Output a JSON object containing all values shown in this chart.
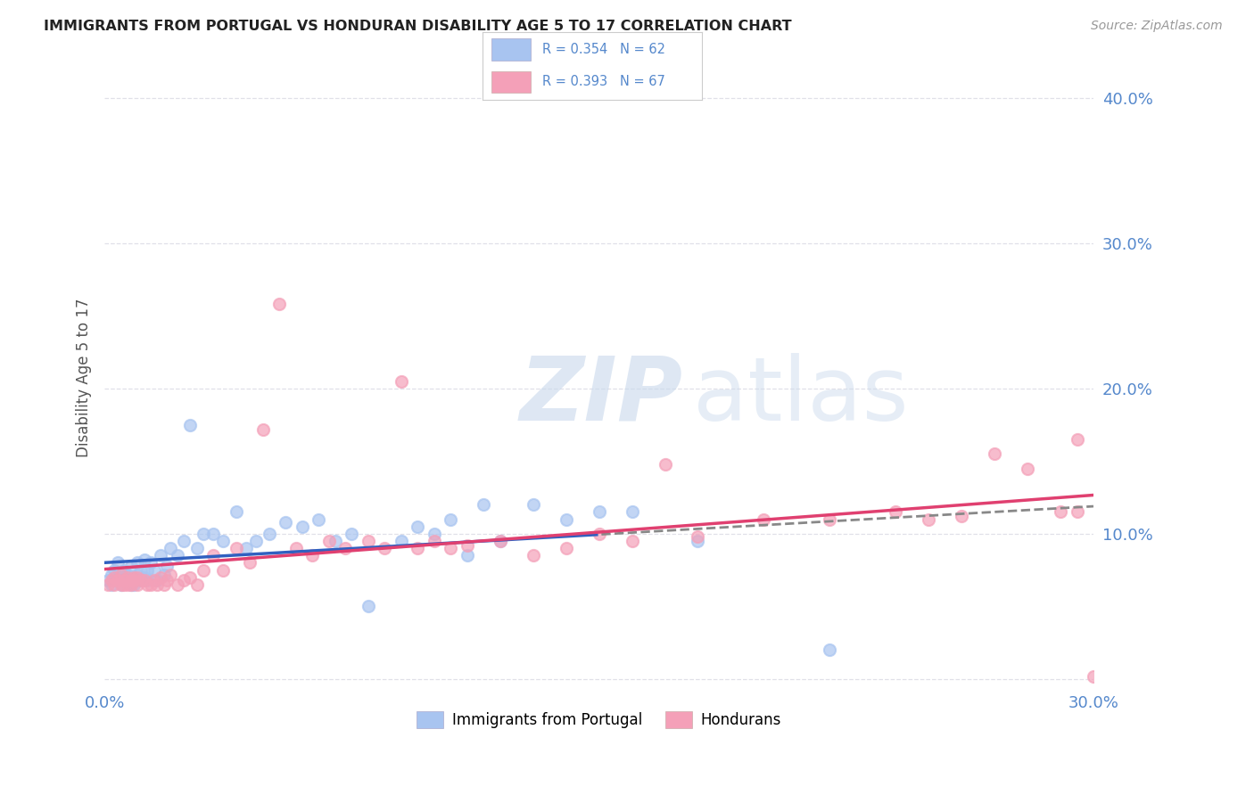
{
  "title": "IMMIGRANTS FROM PORTUGAL VS HONDURAN DISABILITY AGE 5 TO 17 CORRELATION CHART",
  "source": "Source: ZipAtlas.com",
  "ylabel": "Disability Age 5 to 17",
  "xlim": [
    0.0,
    0.3
  ],
  "ylim": [
    -0.005,
    0.42
  ],
  "xticks": [
    0.0,
    0.05,
    0.1,
    0.15,
    0.2,
    0.25,
    0.3
  ],
  "yticks": [
    0.0,
    0.1,
    0.2,
    0.3,
    0.4
  ],
  "legend_labels": [
    "Immigrants from Portugal",
    "Hondurans"
  ],
  "portugal_color": "#a8c4f0",
  "honduran_color": "#f4a0b8",
  "portugal_line_color": "#3060c0",
  "honduran_line_color": "#e04070",
  "r_portugal": 0.354,
  "n_portugal": 62,
  "r_honduran": 0.393,
  "n_honduran": 67,
  "background_color": "#ffffff",
  "grid_color": "#e0e0e8",
  "portugal_scatter_x": [
    0.001,
    0.002,
    0.002,
    0.003,
    0.003,
    0.004,
    0.004,
    0.005,
    0.005,
    0.006,
    0.006,
    0.007,
    0.007,
    0.008,
    0.008,
    0.009,
    0.009,
    0.01,
    0.01,
    0.011,
    0.011,
    0.012,
    0.012,
    0.013,
    0.013,
    0.014,
    0.015,
    0.016,
    0.017,
    0.018,
    0.019,
    0.02,
    0.022,
    0.024,
    0.026,
    0.028,
    0.03,
    0.033,
    0.036,
    0.04,
    0.043,
    0.046,
    0.05,
    0.055,
    0.06,
    0.065,
    0.07,
    0.075,
    0.08,
    0.09,
    0.095,
    0.1,
    0.105,
    0.11,
    0.115,
    0.12,
    0.13,
    0.14,
    0.15,
    0.16,
    0.18,
    0.22
  ],
  "portugal_scatter_y": [
    0.068,
    0.072,
    0.065,
    0.075,
    0.07,
    0.068,
    0.08,
    0.072,
    0.065,
    0.07,
    0.075,
    0.068,
    0.072,
    0.065,
    0.078,
    0.07,
    0.065,
    0.08,
    0.072,
    0.068,
    0.075,
    0.07,
    0.082,
    0.068,
    0.075,
    0.08,
    0.075,
    0.068,
    0.085,
    0.072,
    0.078,
    0.09,
    0.085,
    0.095,
    0.175,
    0.09,
    0.1,
    0.1,
    0.095,
    0.115,
    0.09,
    0.095,
    0.1,
    0.108,
    0.105,
    0.11,
    0.095,
    0.1,
    0.05,
    0.095,
    0.105,
    0.1,
    0.11,
    0.085,
    0.12,
    0.095,
    0.12,
    0.11,
    0.115,
    0.115,
    0.095,
    0.02
  ],
  "honduran_scatter_x": [
    0.001,
    0.002,
    0.003,
    0.003,
    0.004,
    0.005,
    0.005,
    0.006,
    0.006,
    0.007,
    0.007,
    0.008,
    0.008,
    0.009,
    0.009,
    0.01,
    0.01,
    0.011,
    0.012,
    0.013,
    0.014,
    0.015,
    0.016,
    0.017,
    0.018,
    0.019,
    0.02,
    0.022,
    0.024,
    0.026,
    0.028,
    0.03,
    0.033,
    0.036,
    0.04,
    0.044,
    0.048,
    0.053,
    0.058,
    0.063,
    0.068,
    0.073,
    0.08,
    0.085,
    0.09,
    0.095,
    0.1,
    0.105,
    0.11,
    0.12,
    0.13,
    0.14,
    0.15,
    0.16,
    0.17,
    0.18,
    0.2,
    0.22,
    0.24,
    0.25,
    0.26,
    0.27,
    0.28,
    0.29,
    0.295,
    0.3,
    0.295
  ],
  "honduran_scatter_y": [
    0.065,
    0.068,
    0.065,
    0.07,
    0.068,
    0.065,
    0.072,
    0.068,
    0.065,
    0.07,
    0.065,
    0.068,
    0.065,
    0.07,
    0.068,
    0.065,
    0.07,
    0.068,
    0.068,
    0.065,
    0.065,
    0.068,
    0.065,
    0.07,
    0.065,
    0.068,
    0.072,
    0.065,
    0.068,
    0.07,
    0.065,
    0.075,
    0.085,
    0.075,
    0.09,
    0.08,
    0.172,
    0.258,
    0.09,
    0.085,
    0.095,
    0.09,
    0.095,
    0.09,
    0.205,
    0.09,
    0.095,
    0.09,
    0.092,
    0.095,
    0.085,
    0.09,
    0.1,
    0.095,
    0.148,
    0.098,
    0.11,
    0.11,
    0.115,
    0.11,
    0.112,
    0.155,
    0.145,
    0.115,
    0.115,
    0.002,
    0.165
  ]
}
